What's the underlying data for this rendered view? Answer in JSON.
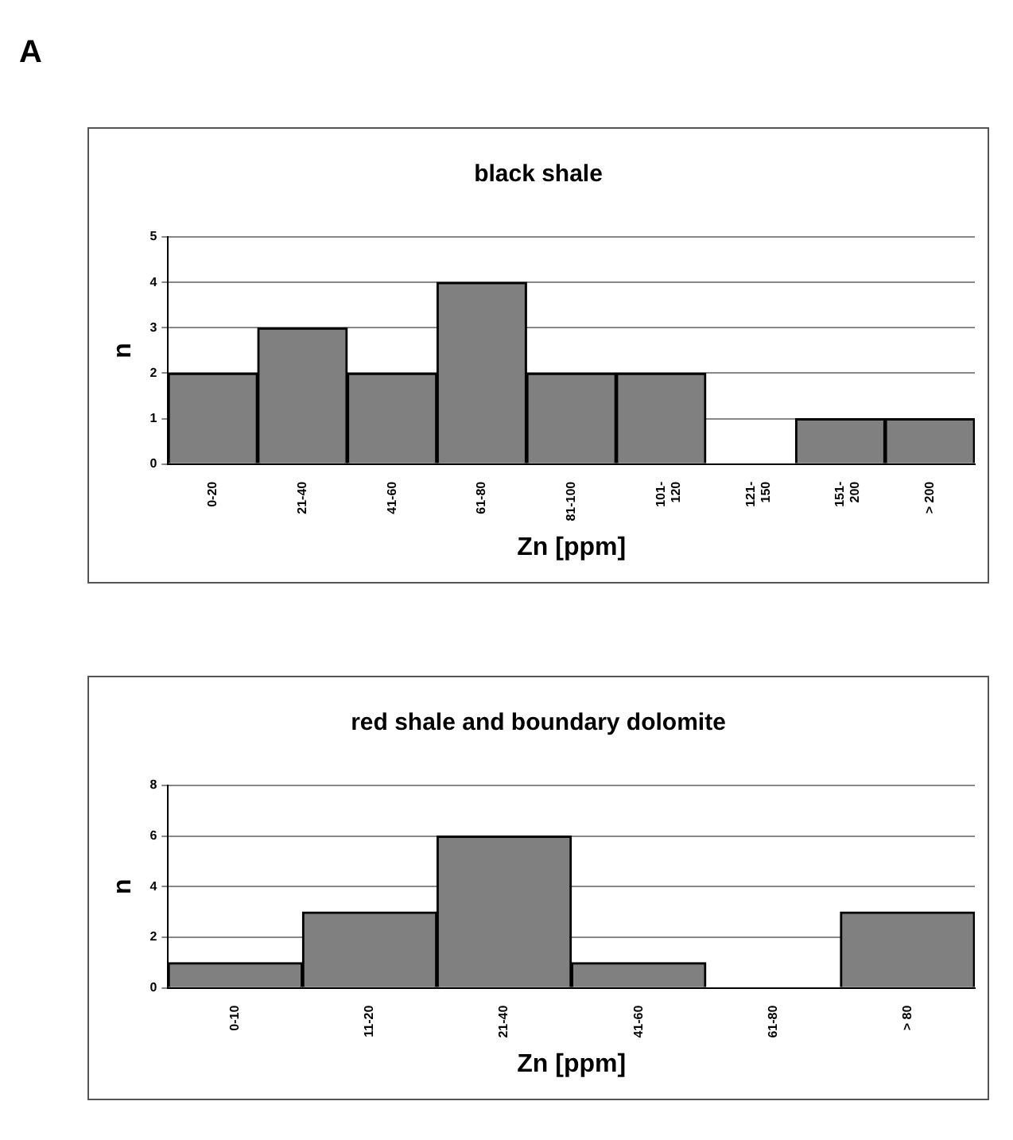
{
  "chart_data": [
    {
      "type": "bar",
      "title": "black shale",
      "xlabel": "Zn [ppm]",
      "ylabel": "n",
      "annotations": [
        "A"
      ],
      "categories": [
        "0-20",
        "21-40",
        "41-60",
        "61-80",
        "81-100",
        "101- 120",
        "121- 150",
        "151- 200",
        "> 200"
      ],
      "values": [
        2,
        3,
        2,
        4,
        2,
        2,
        0,
        1,
        1
      ],
      "color": "#808080",
      "ylim": [
        0,
        5
      ],
      "yticks": [
        0,
        1,
        2,
        3,
        4,
        5
      ],
      "grid": "y",
      "legend": false
    },
    {
      "type": "bar",
      "title": "red shale and boundary dolomite",
      "xlabel": "Zn [ppm]",
      "ylabel": "n",
      "categories": [
        "0-10",
        "11-20",
        "21-40",
        "41-60",
        "61-80",
        "> 80"
      ],
      "values": [
        1,
        3,
        6,
        1,
        0,
        3
      ],
      "color": "#808080",
      "ylim": [
        0,
        8
      ],
      "yticks": [
        0,
        2,
        4,
        6,
        8
      ],
      "grid": "y",
      "legend": false
    }
  ]
}
